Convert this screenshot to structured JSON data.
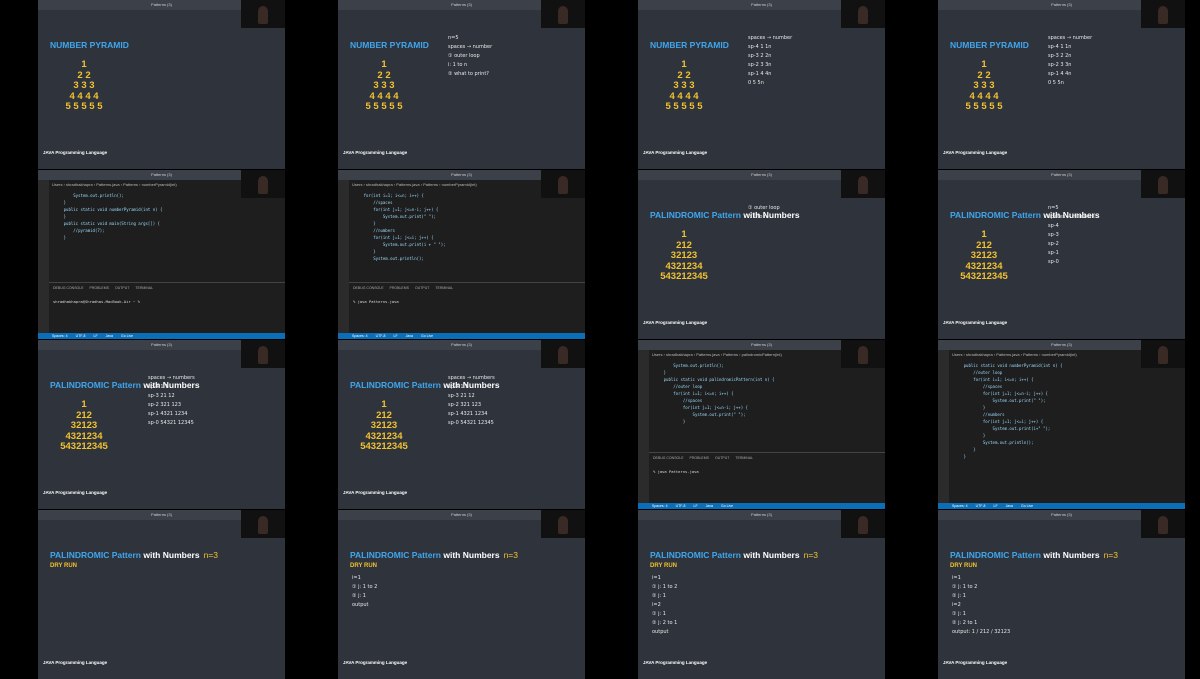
{
  "window_title": "Patterns (3)",
  "tiles": [
    {
      "kind": "slide",
      "title": "NUMBER PYRAMID",
      "rows": [
        "1",
        "2 2",
        "3 3 3",
        "4 4 4 4",
        "5 5 5 5 5"
      ],
      "footer": "JAVA Programming Language"
    },
    {
      "kind": "slide",
      "title": "NUMBER PYRAMID",
      "rows": [
        "1",
        "2 2",
        "3 3 3",
        "4 4 4 4",
        "5 5 5 5 5"
      ],
      "notes": [
        "n=5",
        "spaces → number",
        "① outer loop",
        "i: 1 to n",
        "② what to print?"
      ],
      "footer": "JAVA Programming Language"
    },
    {
      "kind": "slide",
      "title": "NUMBER PYRAMID",
      "rows": [
        "1",
        "2 2",
        "3 3 3",
        "4 4 4 4",
        "5 5 5 5 5"
      ],
      "notes": [
        "spaces → number",
        "sp-4   1  1n",
        "sp-3   2  2n",
        "sp-2   3  3n",
        "sp-1   4  4n",
        "0      5  5n"
      ],
      "footer": "JAVA Programming Language"
    },
    {
      "kind": "slide",
      "title": "NUMBER PYRAMID",
      "rows": [
        "1",
        "2 2",
        "3 3 3",
        "4 4 4 4",
        "5 5 5 5 5"
      ],
      "notes": [
        "spaces → number",
        "sp-4   1  1n",
        "sp-3   2  2n",
        "sp-2   3  3n",
        "sp-1   4  4n",
        "0      5  5n"
      ],
      "footer": "JAVA Programming Language"
    },
    {
      "kind": "code",
      "breadcrumb": "Users › shradhakhapra › Patterns.java › Patterns › numberPyramid(int)",
      "lines": [
        "        System.out.println();",
        "    }",
        "",
        "    public static void numberPyramid(int n) {",
        "",
        "    }",
        "",
        "    public static void main(String args[]) {",
        "        //pyramid(7);",
        "    }"
      ],
      "tabs": [
        "DEBUG CONSOLE",
        "PROBLEMS",
        "OUTPUT",
        "TERMINAL"
      ],
      "prompt": "shradhakhapra@Shradhas-MacBook-Air ~ %",
      "status": [
        "Spaces: 4",
        "UTF-8",
        "LF",
        "Java",
        "Go Live"
      ]
    },
    {
      "kind": "code",
      "breadcrumb": "Users › shradhakhapra › Patterns.java › Patterns › numberPyramid(int)",
      "lines": [
        "    for(int i=1; i<=n; i++) {",
        "        //spaces",
        "        for(int j=1; j<=n-i; j++) {",
        "            System.out.print(\" \");",
        "        }",
        "        //numbers",
        "        for(int j=1; j<=i; j++) {",
        "            System.out.print(i + \" \");",
        "        }",
        "        System.out.println();"
      ],
      "tabs": [
        "DEBUG CONSOLE",
        "PROBLEMS",
        "OUTPUT",
        "TERMINAL"
      ],
      "prompt": "% java Patterns.java",
      "status": [
        "Spaces: 4",
        "UTF-8",
        "LF",
        "Java",
        "Go Live"
      ]
    },
    {
      "kind": "slide",
      "title": "PALINDROMIC Pattern",
      "title_emph": "with Numbers",
      "rows": [
        "1",
        "212",
        "32123",
        "4321234",
        "543212345"
      ],
      "notes": [
        "① outer loop",
        "i: 1 to n"
      ],
      "footer": "JAVA Programming Language"
    },
    {
      "kind": "slide",
      "title": "PALINDROMIC Pattern",
      "title_emph": "with Numbers",
      "rows": [
        "1",
        "212",
        "32123",
        "4321234",
        "543212345"
      ],
      "notes": [
        "n=5",
        "spaces → numbers",
        "sp-4",
        "sp-3",
        "sp-2",
        "sp-1",
        "sp-0"
      ],
      "footer": "JAVA Programming Language"
    },
    {
      "kind": "slide",
      "title": "PALINDROMIC Pattern",
      "title_emph": "with Numbers",
      "rows": [
        "1",
        "212",
        "32123",
        "4321234",
        "543212345"
      ],
      "notes": [
        "spaces → numbers",
        "sp-4  1  1",
        "sp-3  21  12",
        "sp-2  321  123",
        "sp-1  4321  1234",
        "sp-0  54321  12345"
      ],
      "footer": "JAVA Programming Language"
    },
    {
      "kind": "slide",
      "title": "PALINDROMIC Pattern",
      "title_emph": "with Numbers",
      "rows": [
        "1",
        "212",
        "32123",
        "4321234",
        "543212345"
      ],
      "notes": [
        "spaces → numbers",
        "sp-4  1  1",
        "sp-3  21  12",
        "sp-2  321  123",
        "sp-1  4321  1234",
        "sp-0  54321  12345"
      ],
      "footer": "JAVA Programming Language"
    },
    {
      "kind": "code",
      "breadcrumb": "Users › shradhakhapra › Patterns.java › Patterns › palindromicPattern(int)",
      "lines": [
        "        System.out.println();",
        "    }",
        "",
        "    public static void palindromicPattern(int n) {",
        "        //outer loop",
        "        for(int i=1; i<=n; i++) {",
        "            //spaces",
        "            for(int j=1; j<=n-i; j++) {",
        "                System.out.print(\" \");",
        "            }"
      ],
      "tabs": [
        "DEBUG CONSOLE",
        "PROBLEMS",
        "OUTPUT",
        "TERMINAL"
      ],
      "prompt": "% java Patterns.java",
      "status": [
        "Spaces: 4",
        "UTF-8",
        "LF",
        "Java",
        "Go Live"
      ]
    },
    {
      "kind": "code",
      "breadcrumb": "Users › shradhakhapra › Patterns.java › Patterns › numberPyramid(int)",
      "lines": [
        "    public static void numberPyramid(int n) {",
        "        //outer loop",
        "        for(int i=1; i<=n; i++) {",
        "            //spaces",
        "            for(int j=1; j<=n-i; j++) {",
        "                System.out.print(\" \");",
        "            }",
        "            //numbers",
        "            for(int j=1; j<=i; j++) {",
        "                System.out.print(i+\" \");",
        "            }",
        "            System.out.println();",
        "        }",
        "    }"
      ],
      "status": [
        "Spaces: 4",
        "UTF-8",
        "LF",
        "Java",
        "Go Live"
      ]
    },
    {
      "kind": "slide",
      "title": "PALINDROMIC Pattern",
      "title_emph": "with Numbers",
      "tag": "n=3",
      "subtitle": "DRY RUN",
      "footer": "JAVA Programming Language"
    },
    {
      "kind": "slide",
      "title": "PALINDROMIC Pattern",
      "title_emph": "with Numbers",
      "tag": "n=3",
      "subtitle": "DRY RUN",
      "notes": [
        "i=1",
        "① j: 1 to 2",
        "② j: 1",
        "output"
      ],
      "footer": "JAVA Programming Language"
    },
    {
      "kind": "slide",
      "title": "PALINDROMIC Pattern",
      "title_emph": "with Numbers",
      "tag": "n=3",
      "subtitle": "DRY RUN",
      "notes": [
        "i=1",
        "① j: 1 to 2",
        "② j: 1",
        "i=2",
        "① j: 1",
        "② j: 2 to 1",
        "output"
      ],
      "footer": "JAVA Programming Language"
    },
    {
      "kind": "slide",
      "title": "PALINDROMIC Pattern",
      "title_emph": "with Numbers",
      "tag": "n=3",
      "subtitle": "DRY RUN",
      "notes": [
        "i=1",
        "① j: 1 to 2",
        "② j: 1",
        "i=2",
        "① j: 1",
        "② j: 2 to 1",
        "output: 1 / 212 / 32123"
      ],
      "footer": "JAVA Programming Language"
    }
  ]
}
